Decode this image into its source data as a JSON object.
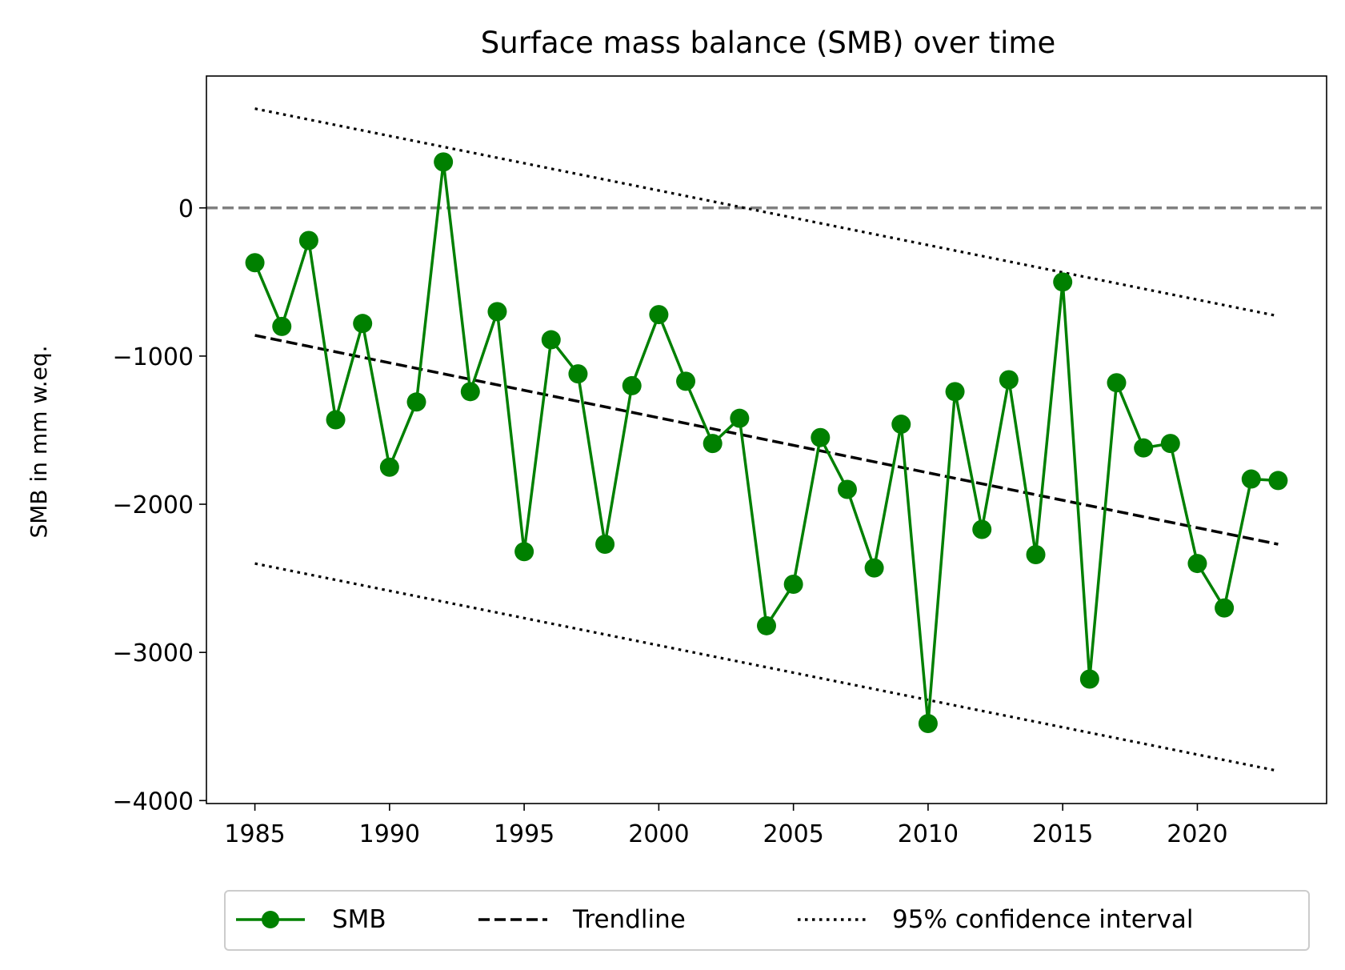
{
  "chart_data": {
    "type": "line",
    "title": "Surface mass balance (SMB) over time",
    "xlabel": "",
    "ylabel": "SMB in mm w.eq.",
    "xlim": [
      1983.2,
      2024.8
    ],
    "ylim": [
      -4020,
      890
    ],
    "x_ticks": [
      1985,
      1990,
      1995,
      2000,
      2005,
      2010,
      2015,
      2020
    ],
    "y_ticks": [
      0,
      -1000,
      -2000,
      -3000,
      -4000
    ],
    "y_tick_labels": [
      "0",
      "−1000",
      "−2000",
      "−3000",
      "−4000"
    ],
    "grid": false,
    "legend_position": "bottom-center",
    "reference_line": {
      "y": 0,
      "style": "dashed",
      "color": "#808080"
    },
    "series": [
      {
        "name": "SMB",
        "style": "solid-line-with-markers",
        "color": "#008000",
        "x": [
          1985,
          1986,
          1987,
          1988,
          1989,
          1990,
          1991,
          1992,
          1993,
          1994,
          1995,
          1996,
          1997,
          1998,
          1999,
          2000,
          2001,
          2002,
          2003,
          2004,
          2005,
          2006,
          2007,
          2008,
          2009,
          2010,
          2011,
          2012,
          2013,
          2014,
          2015,
          2016,
          2017,
          2018,
          2019,
          2020,
          2021,
          2022,
          2023
        ],
        "values": [
          -370,
          -800,
          -220,
          -1430,
          -780,
          -1750,
          -1310,
          310,
          -1240,
          -700,
          -2320,
          -890,
          -1120,
          -2270,
          -1200,
          -720,
          -1170,
          -1590,
          -1420,
          -2820,
          -2540,
          -1550,
          -1900,
          -2430,
          -1460,
          -3480,
          -1240,
          -2170,
          -1160,
          -2340,
          -500,
          -3180,
          -1180,
          -1620,
          -1590,
          -2400,
          -2700,
          -1830,
          -1840
        ]
      },
      {
        "name": "Trendline",
        "style": "dashed",
        "color": "#000000",
        "x": [
          1985,
          2023
        ],
        "values": [
          -860,
          -2270
        ]
      },
      {
        "name": "95% confidence interval",
        "style": "dotted",
        "color": "#000000",
        "x": [
          1985,
          2023
        ],
        "upper": [
          670,
          -730
        ],
        "lower": [
          -2400,
          -3800
        ]
      }
    ]
  }
}
